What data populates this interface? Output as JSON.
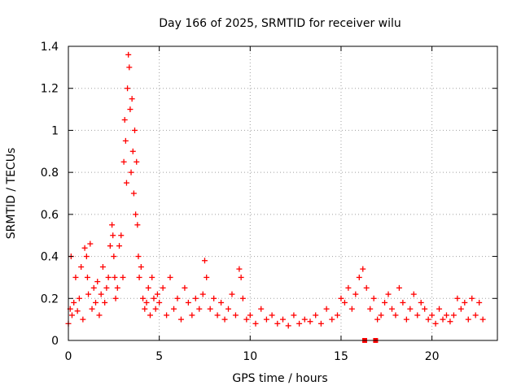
{
  "chart_data": {
    "type": "scatter",
    "title": "Day 166 of 2025, SRMTID for receiver wilu",
    "xlabel": "GPS time / hours",
    "ylabel": "SRMTID / TECUs",
    "xlim": [
      0,
      23.6
    ],
    "ylim": [
      0,
      1.4
    ],
    "xticks": [
      0,
      5,
      10,
      15,
      20
    ],
    "xtick_labels": [
      "0",
      "5",
      "10",
      "15",
      "20"
    ],
    "yticks": [
      0,
      0.2,
      0.4,
      0.6,
      0.8,
      1.0,
      1.2,
      1.4
    ],
    "ytick_labels": [
      "0",
      "0.2",
      "0.4",
      "0.6",
      "0.8",
      "1",
      "1.2",
      "1.4"
    ],
    "grid": true,
    "marker": "plus",
    "color": "#ff0000",
    "series": [
      {
        "name": "SRMTID",
        "x": [
          0.0,
          0.1,
          0.15,
          0.2,
          0.3,
          0.4,
          0.5,
          0.6,
          0.7,
          0.8,
          0.9,
          1.0,
          1.05,
          1.1,
          1.2,
          1.3,
          1.4,
          1.5,
          1.6,
          1.7,
          1.8,
          1.9,
          2.0,
          2.1,
          2.2,
          2.3,
          2.4,
          2.45,
          2.5,
          2.55,
          2.6,
          2.7,
          2.8,
          2.9,
          3.0,
          3.05,
          3.1,
          3.15,
          3.2,
          3.25,
          3.3,
          3.35,
          3.4,
          3.45,
          3.5,
          3.55,
          3.6,
          3.65,
          3.7,
          3.75,
          3.8,
          3.85,
          3.9,
          4.0,
          4.1,
          4.2,
          4.3,
          4.4,
          4.5,
          4.6,
          4.7,
          4.8,
          4.9,
          5.0,
          5.2,
          5.4,
          5.6,
          5.8,
          6.0,
          6.2,
          6.4,
          6.6,
          6.8,
          7.0,
          7.2,
          7.4,
          7.5,
          7.6,
          7.8,
          8.0,
          8.2,
          8.4,
          8.6,
          8.8,
          9.0,
          9.2,
          9.4,
          9.5,
          9.6,
          9.8,
          10.0,
          10.3,
          10.6,
          10.9,
          11.2,
          11.5,
          11.8,
          12.1,
          12.4,
          12.7,
          13.0,
          13.3,
          13.6,
          13.9,
          14.2,
          14.5,
          14.8,
          15.0,
          15.2,
          15.4,
          15.6,
          15.8,
          16.0,
          16.2,
          16.4,
          16.6,
          16.8,
          17.0,
          17.2,
          17.4,
          17.6,
          17.8,
          18.0,
          18.2,
          18.4,
          18.6,
          18.8,
          19.0,
          19.2,
          19.4,
          19.6,
          19.8,
          20.0,
          20.2,
          20.4,
          20.6,
          20.8,
          21.0,
          21.2,
          21.4,
          21.6,
          21.8,
          22.0,
          22.2,
          22.4,
          22.6,
          22.8
        ],
        "y": [
          0.08,
          0.15,
          0.4,
          0.12,
          0.18,
          0.3,
          0.14,
          0.2,
          0.35,
          0.1,
          0.44,
          0.4,
          0.3,
          0.22,
          0.46,
          0.15,
          0.25,
          0.18,
          0.28,
          0.12,
          0.22,
          0.35,
          0.18,
          0.25,
          0.3,
          0.45,
          0.55,
          0.5,
          0.4,
          0.3,
          0.2,
          0.25,
          0.45,
          0.5,
          0.3,
          0.85,
          1.05,
          0.95,
          0.75,
          1.2,
          1.36,
          1.3,
          1.1,
          0.8,
          1.15,
          0.9,
          0.7,
          1.0,
          0.6,
          0.85,
          0.55,
          0.4,
          0.3,
          0.35,
          0.2,
          0.15,
          0.18,
          0.25,
          0.12,
          0.3,
          0.2,
          0.15,
          0.22,
          0.18,
          0.25,
          0.12,
          0.3,
          0.15,
          0.2,
          0.1,
          0.25,
          0.18,
          0.12,
          0.2,
          0.15,
          0.22,
          0.38,
          0.3,
          0.15,
          0.2,
          0.12,
          0.18,
          0.1,
          0.15,
          0.22,
          0.12,
          0.34,
          0.3,
          0.2,
          0.1,
          0.12,
          0.08,
          0.15,
          0.1,
          0.12,
          0.08,
          0.1,
          0.07,
          0.12,
          0.08,
          0.1,
          0.09,
          0.12,
          0.08,
          0.15,
          0.1,
          0.12,
          0.2,
          0.18,
          0.25,
          0.15,
          0.22,
          0.3,
          0.34,
          0.25,
          0.15,
          0.2,
          0.1,
          0.12,
          0.18,
          0.22,
          0.15,
          0.12,
          0.25,
          0.18,
          0.1,
          0.15,
          0.22,
          0.12,
          0.18,
          0.15,
          0.1,
          0.12,
          0.08,
          0.15,
          0.1,
          0.12,
          0.09,
          0.12,
          0.2,
          0.15,
          0.18,
          0.1,
          0.2,
          0.12,
          0.18,
          0.1
        ]
      }
    ],
    "square_markers": {
      "x": [
        16.3,
        16.9
      ],
      "y": [
        0.0,
        0.0
      ]
    }
  }
}
